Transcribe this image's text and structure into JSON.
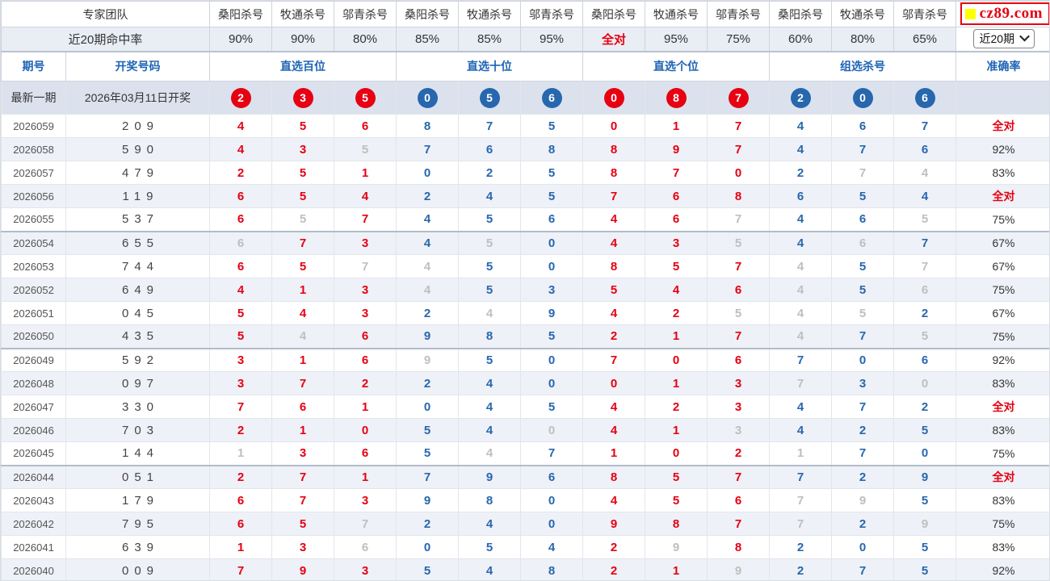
{
  "colors": {
    "red": "#e60012",
    "blue": "#2767ae",
    "gray": "#bfbfbf",
    "header_blue": "#1e64b4"
  },
  "header": {
    "team_label": "专家团队",
    "hit_rate_label": "近20期命中率",
    "experts": [
      "桑阳杀号",
      "牧通杀号",
      "邬青杀号",
      "桑阳杀号",
      "牧通杀号",
      "邬青杀号",
      "桑阳杀号",
      "牧通杀号",
      "邬青杀号",
      "桑阳杀号",
      "牧通杀号",
      "邬青杀号"
    ],
    "rates": [
      {
        "t": "90%"
      },
      {
        "t": "90%"
      },
      {
        "t": "80%"
      },
      {
        "t": "85%"
      },
      {
        "t": "85%"
      },
      {
        "t": "95%"
      },
      {
        "t": "全对",
        "red": true
      },
      {
        "t": "95%"
      },
      {
        "t": "75%"
      },
      {
        "t": "60%"
      },
      {
        "t": "80%"
      },
      {
        "t": "65%"
      }
    ],
    "logo_text": "cz89.com",
    "range_dropdown": "近20期"
  },
  "columns": {
    "issue": "期号",
    "draw": "开奖号码",
    "groups": [
      "直选百位",
      "直选十位",
      "直选个位",
      "组选杀号"
    ],
    "accuracy": "准确率"
  },
  "latest": {
    "label": "最新一期",
    "date": "2026年03月11日开奖",
    "numbers": [
      "2r",
      "3r",
      "5r",
      "0b",
      "5b",
      "6b",
      "0r",
      "8r",
      "7r",
      "2b",
      "0b",
      "6b"
    ]
  },
  "rows": [
    {
      "issue": "2026059",
      "draw": "209",
      "cells": [
        "4r",
        "5r",
        "6r",
        "8b",
        "7b",
        "5b",
        "0r",
        "1r",
        "7r",
        "4b",
        "6b",
        "7b"
      ],
      "acc": "全对",
      "red": true
    },
    {
      "issue": "2026058",
      "draw": "590",
      "cells": [
        "4r",
        "3r",
        "5g",
        "7b",
        "6b",
        "8b",
        "8r",
        "9r",
        "7r",
        "4b",
        "7b",
        "6b"
      ],
      "acc": "92%"
    },
    {
      "issue": "2026057",
      "draw": "479",
      "cells": [
        "2r",
        "5r",
        "1r",
        "0b",
        "2b",
        "5b",
        "8r",
        "7r",
        "0r",
        "2b",
        "7g",
        "4g"
      ],
      "acc": "83%"
    },
    {
      "issue": "2026056",
      "draw": "119",
      "cells": [
        "6r",
        "5r",
        "4r",
        "2b",
        "4b",
        "5b",
        "7r",
        "6r",
        "8r",
        "6b",
        "5b",
        "4b"
      ],
      "acc": "全对",
      "red": true
    },
    {
      "issue": "2026055",
      "draw": "537",
      "cells": [
        "6r",
        "5g",
        "7r",
        "4b",
        "5b",
        "6b",
        "4r",
        "6r",
        "7g",
        "4b",
        "6b",
        "5g"
      ],
      "acc": "75%"
    },
    {
      "issue": "2026054",
      "draw": "655",
      "cells": [
        "6g",
        "7r",
        "3r",
        "4b",
        "5g",
        "0b",
        "4r",
        "3r",
        "5g",
        "4b",
        "6g",
        "7b"
      ],
      "acc": "67%"
    },
    {
      "issue": "2026053",
      "draw": "744",
      "cells": [
        "6r",
        "5r",
        "7g",
        "4g",
        "5b",
        "0b",
        "8r",
        "5r",
        "7r",
        "4g",
        "5b",
        "7g"
      ],
      "acc": "67%"
    },
    {
      "issue": "2026052",
      "draw": "649",
      "cells": [
        "4r",
        "1r",
        "3r",
        "4g",
        "5b",
        "3b",
        "5r",
        "4r",
        "6r",
        "4g",
        "5b",
        "6g"
      ],
      "acc": "75%"
    },
    {
      "issue": "2026051",
      "draw": "045",
      "cells": [
        "5r",
        "4r",
        "3r",
        "2b",
        "4g",
        "9b",
        "4r",
        "2r",
        "5g",
        "4g",
        "5g",
        "2b"
      ],
      "acc": "67%"
    },
    {
      "issue": "2026050",
      "draw": "435",
      "cells": [
        "5r",
        "4g",
        "6r",
        "9b",
        "8b",
        "5b",
        "2r",
        "1r",
        "7r",
        "4g",
        "7b",
        "5g"
      ],
      "acc": "75%"
    },
    {
      "issue": "2026049",
      "draw": "592",
      "cells": [
        "3r",
        "1r",
        "6r",
        "9g",
        "5b",
        "0b",
        "7r",
        "0r",
        "6r",
        "7b",
        "0b",
        "6b"
      ],
      "acc": "92%"
    },
    {
      "issue": "2026048",
      "draw": "097",
      "cells": [
        "3r",
        "7r",
        "2r",
        "2b",
        "4b",
        "0b",
        "0r",
        "1r",
        "3r",
        "7g",
        "3b",
        "0g"
      ],
      "acc": "83%"
    },
    {
      "issue": "2026047",
      "draw": "330",
      "cells": [
        "7r",
        "6r",
        "1r",
        "0b",
        "4b",
        "5b",
        "4r",
        "2r",
        "3r",
        "4b",
        "7b",
        "2b"
      ],
      "acc": "全对",
      "red": true
    },
    {
      "issue": "2026046",
      "draw": "703",
      "cells": [
        "2r",
        "1r",
        "0r",
        "5b",
        "4b",
        "0g",
        "4r",
        "1r",
        "3g",
        "4b",
        "2b",
        "5b"
      ],
      "acc": "83%"
    },
    {
      "issue": "2026045",
      "draw": "144",
      "cells": [
        "1g",
        "3r",
        "6r",
        "5b",
        "4g",
        "7b",
        "1r",
        "0r",
        "2r",
        "1g",
        "7b",
        "0b"
      ],
      "acc": "75%"
    },
    {
      "issue": "2026044",
      "draw": "051",
      "cells": [
        "2r",
        "7r",
        "1r",
        "7b",
        "9b",
        "6b",
        "8r",
        "5r",
        "7r",
        "7b",
        "2b",
        "9b"
      ],
      "acc": "全对",
      "red": true
    },
    {
      "issue": "2026043",
      "draw": "179",
      "cells": [
        "6r",
        "7r",
        "3r",
        "9b",
        "8b",
        "0b",
        "4r",
        "5r",
        "6r",
        "7g",
        "9g",
        "5b"
      ],
      "acc": "83%"
    },
    {
      "issue": "2026042",
      "draw": "795",
      "cells": [
        "6r",
        "5r",
        "7g",
        "2b",
        "4b",
        "0b",
        "9r",
        "8r",
        "7r",
        "7g",
        "2b",
        "9g"
      ],
      "acc": "75%"
    },
    {
      "issue": "2026041",
      "draw": "639",
      "cells": [
        "1r",
        "3r",
        "6g",
        "0b",
        "5b",
        "4b",
        "2r",
        "9g",
        "8r",
        "2b",
        "0b",
        "5b"
      ],
      "acc": "83%"
    },
    {
      "issue": "2026040",
      "draw": "009",
      "cells": [
        "7r",
        "9r",
        "3r",
        "5b",
        "4b",
        "8b",
        "2r",
        "1r",
        "9g",
        "2b",
        "7b",
        "5b"
      ],
      "acc": "92%"
    }
  ]
}
